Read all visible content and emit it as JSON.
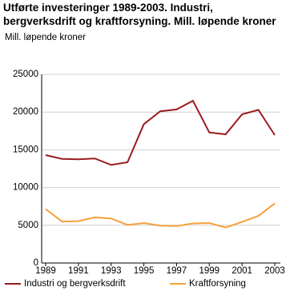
{
  "chart_data": {
    "type": "line",
    "title": "Utførte investeringer 1989-2003. Industri, bergverksdrift og kraftforsyning. Mill. løpende kroner",
    "y_label": "Mill. løpende kroner",
    "x": [
      1989,
      1990,
      1991,
      1992,
      1993,
      1994,
      1995,
      1996,
      1997,
      1998,
      1999,
      2000,
      2001,
      2002,
      2003
    ],
    "series": [
      {
        "name": "Industri og bergverksdrift",
        "color": "#9b1b1e",
        "values": [
          14300,
          13800,
          13750,
          13850,
          13000,
          13350,
          18400,
          20100,
          20350,
          21500,
          17300,
          17050,
          19700,
          20300,
          16950
        ]
      },
      {
        "name": "Kraftforsyning",
        "color": "#f5a03c",
        "values": [
          7150,
          5500,
          5550,
          6050,
          5900,
          5050,
          5300,
          4950,
          4900,
          5250,
          5300,
          4700,
          5450,
          6250,
          7900
        ]
      }
    ],
    "xlim": [
      1989,
      2003
    ],
    "xticks": [
      1989,
      1991,
      1993,
      1995,
      1997,
      1999,
      2001,
      2003
    ],
    "ylim": [
      0,
      25000
    ],
    "yticks": [
      0,
      5000,
      10000,
      15000,
      20000,
      25000
    ],
    "grid": true
  }
}
